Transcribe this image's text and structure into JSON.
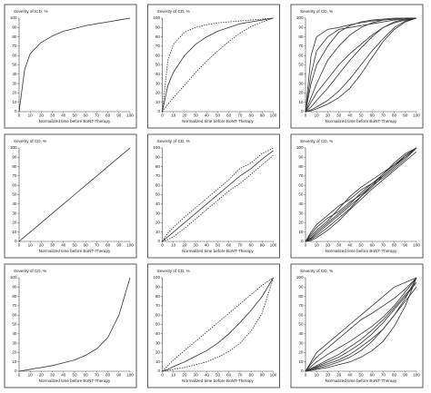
{
  "chart_data": [
    {
      "type": "line",
      "y_label": "Severity of ICD, %",
      "x_label": "Normalized time before BoNT-Therapy",
      "x": [
        0,
        5,
        10,
        20,
        30,
        40,
        50,
        60,
        70,
        80,
        90,
        100
      ],
      "xlim": [
        0,
        100
      ],
      "ylim": [
        0,
        100
      ],
      "xticks": [
        0,
        10,
        20,
        30,
        40,
        50,
        60,
        70,
        80,
        90,
        100
      ],
      "yticks": [
        0,
        10,
        20,
        30,
        40,
        50,
        60,
        70,
        80,
        90,
        100
      ],
      "series": [
        {
          "color": "#333333",
          "dashed": false,
          "values": [
            0,
            45,
            62,
            74,
            81,
            86,
            89,
            92,
            94,
            96,
            98,
            100
          ]
        }
      ]
    },
    {
      "type": "line",
      "y_label": "Severity of CD, %",
      "x_label": "Normalized time before BoNT-Therapy",
      "x": [
        0,
        5,
        10,
        20,
        30,
        40,
        50,
        60,
        70,
        80,
        90,
        100
      ],
      "xlim": [
        0,
        100
      ],
      "ylim": [
        0,
        100
      ],
      "xticks": [
        0,
        10,
        20,
        30,
        40,
        50,
        60,
        70,
        80,
        90,
        100
      ],
      "yticks": [
        0,
        10,
        20,
        30,
        40,
        50,
        60,
        70,
        80,
        90,
        100
      ],
      "series": [
        {
          "color": "#333333",
          "dashed": false,
          "values": [
            0,
            28,
            42,
            60,
            72,
            80,
            86,
            90,
            94,
            96,
            98,
            100
          ]
        },
        {
          "color": "#333333",
          "dashed": true,
          "values": [
            0,
            55,
            72,
            85,
            90,
            93,
            95,
            96,
            97,
            98,
            99,
            100
          ]
        },
        {
          "color": "#333333",
          "dashed": true,
          "values": [
            0,
            8,
            15,
            28,
            42,
            54,
            65,
            75,
            84,
            91,
            96,
            100
          ]
        }
      ]
    },
    {
      "type": "line",
      "y_label": "Severity of CD, %",
      "x_label": "Normalized time before BoNT-Therapy",
      "x": [
        0,
        5,
        10,
        20,
        30,
        40,
        50,
        60,
        70,
        80,
        90,
        100
      ],
      "xlim": [
        0,
        100
      ],
      "ylim": [
        0,
        100
      ],
      "xticks": [
        0,
        10,
        20,
        30,
        40,
        50,
        60,
        70,
        80,
        90,
        100
      ],
      "yticks": [
        0,
        10,
        20,
        30,
        40,
        50,
        60,
        70,
        80,
        90,
        100
      ],
      "series": [
        {
          "color": "#333333",
          "dashed": false,
          "values": [
            0,
            30,
            50,
            70,
            85,
            92,
            96,
            98,
            99,
            100,
            100,
            100
          ]
        },
        {
          "color": "#333333",
          "dashed": false,
          "values": [
            0,
            15,
            30,
            55,
            70,
            82,
            90,
            95,
            98,
            99,
            100,
            100
          ]
        },
        {
          "color": "#333333",
          "dashed": false,
          "values": [
            0,
            5,
            12,
            25,
            40,
            55,
            68,
            80,
            90,
            96,
            99,
            100
          ]
        },
        {
          "color": "#333333",
          "dashed": false,
          "values": [
            0,
            2,
            5,
            12,
            22,
            35,
            50,
            65,
            78,
            90,
            97,
            100
          ]
        },
        {
          "color": "#333333",
          "dashed": false,
          "values": [
            0,
            60,
            80,
            88,
            90,
            93,
            95,
            97,
            98,
            99,
            100,
            100
          ]
        },
        {
          "color": "#333333",
          "dashed": false,
          "values": [
            0,
            10,
            20,
            35,
            50,
            62,
            72,
            82,
            90,
            95,
            98,
            100
          ]
        },
        {
          "color": "#333333",
          "dashed": false,
          "values": [
            0,
            40,
            65,
            80,
            88,
            90,
            92,
            94,
            96,
            98,
            99,
            100
          ]
        },
        {
          "color": "#333333",
          "dashed": false,
          "values": [
            0,
            1,
            3,
            8,
            15,
            25,
            40,
            58,
            75,
            88,
            96,
            100
          ]
        }
      ]
    },
    {
      "type": "line",
      "y_label": "Severity of CD, %",
      "x_label": "Normalized time before BoNT-Therapy",
      "x": [
        0,
        5,
        10,
        20,
        30,
        40,
        50,
        60,
        70,
        80,
        90,
        100
      ],
      "xlim": [
        0,
        100
      ],
      "ylim": [
        0,
        100
      ],
      "xticks": [
        0,
        10,
        20,
        30,
        40,
        50,
        60,
        70,
        80,
        90,
        100
      ],
      "yticks": [
        0,
        10,
        20,
        30,
        40,
        50,
        60,
        70,
        80,
        90,
        100
      ],
      "series": [
        {
          "color": "#333333",
          "dashed": false,
          "values": [
            0,
            5,
            10,
            20,
            30,
            40,
            50,
            60,
            70,
            80,
            90,
            100
          ]
        }
      ]
    },
    {
      "type": "line",
      "y_label": "Severity of CD, %",
      "x_label": "Normalized time before BoNT-Therapy",
      "x": [
        0,
        5,
        10,
        20,
        30,
        40,
        50,
        60,
        70,
        80,
        90,
        100
      ],
      "xlim": [
        0,
        100
      ],
      "ylim": [
        0,
        100
      ],
      "xticks": [
        0,
        10,
        20,
        30,
        40,
        50,
        60,
        70,
        80,
        90,
        100
      ],
      "yticks": [
        0,
        10,
        20,
        30,
        40,
        50,
        60,
        70,
        80,
        90,
        100
      ],
      "series": [
        {
          "color": "#333333",
          "dashed": false,
          "values": [
            0,
            5,
            10,
            20,
            30,
            40,
            50,
            60,
            70,
            78,
            88,
            97
          ]
        },
        {
          "color": "#333333",
          "dashed": true,
          "values": [
            0,
            9,
            15,
            26,
            36,
            46,
            56,
            66,
            78,
            84,
            94,
            100
          ]
        },
        {
          "color": "#333333",
          "dashed": true,
          "values": [
            0,
            2,
            5,
            14,
            24,
            34,
            44,
            54,
            62,
            72,
            82,
            92
          ]
        }
      ]
    },
    {
      "type": "line",
      "y_label": "Severity of CD, %",
      "x_label": "Normalized time before BoNT-Therapy",
      "x": [
        0,
        5,
        10,
        20,
        30,
        40,
        50,
        60,
        70,
        80,
        90,
        100
      ],
      "xlim": [
        0,
        100
      ],
      "ylim": [
        0,
        100
      ],
      "xticks": [
        0,
        10,
        20,
        30,
        40,
        50,
        60,
        70,
        80,
        90,
        100
      ],
      "yticks": [
        0,
        10,
        20,
        30,
        40,
        50,
        60,
        70,
        80,
        90,
        100
      ],
      "series": [
        {
          "color": "#333333",
          "dashed": false,
          "values": [
            0,
            3,
            8,
            18,
            28,
            38,
            48,
            58,
            70,
            80,
            90,
            100
          ]
        },
        {
          "color": "#333333",
          "dashed": false,
          "values": [
            0,
            8,
            15,
            25,
            32,
            42,
            50,
            60,
            68,
            78,
            88,
            100
          ]
        },
        {
          "color": "#333333",
          "dashed": false,
          "values": [
            0,
            2,
            6,
            15,
            25,
            35,
            48,
            60,
            72,
            82,
            92,
            100
          ]
        },
        {
          "color": "#333333",
          "dashed": false,
          "values": [
            0,
            10,
            18,
            28,
            38,
            45,
            55,
            62,
            70,
            80,
            92,
            100
          ]
        },
        {
          "color": "#333333",
          "dashed": false,
          "values": [
            0,
            4,
            10,
            20,
            30,
            40,
            52,
            62,
            72,
            84,
            94,
            100
          ]
        },
        {
          "color": "#333333",
          "dashed": false,
          "values": [
            0,
            1,
            4,
            12,
            22,
            34,
            45,
            56,
            66,
            76,
            86,
            96
          ]
        },
        {
          "color": "#333333",
          "dashed": false,
          "values": [
            0,
            6,
            12,
            22,
            35,
            48,
            58,
            66,
            74,
            82,
            90,
            100
          ]
        }
      ]
    },
    {
      "type": "line",
      "y_label": "Severity of CD, %",
      "x_label": "Normalized time before BoNT-Therapy",
      "x": [
        0,
        5,
        10,
        20,
        30,
        40,
        50,
        60,
        70,
        80,
        90,
        100
      ],
      "xlim": [
        0,
        100
      ],
      "ylim": [
        0,
        100
      ],
      "xticks": [
        0,
        10,
        20,
        30,
        40,
        50,
        60,
        70,
        80,
        90,
        100
      ],
      "yticks": [
        0,
        10,
        20,
        30,
        40,
        50,
        60,
        70,
        80,
        90,
        100
      ],
      "series": [
        {
          "color": "#333333",
          "dashed": false,
          "values": [
            0,
            1,
            2,
            4,
            6,
            9,
            12,
            17,
            24,
            36,
            60,
            100
          ]
        }
      ]
    },
    {
      "type": "line",
      "y_label": "Severity of CD, %",
      "x_label": "Normalized time before BoNT-Therapy",
      "x": [
        0,
        5,
        10,
        20,
        30,
        40,
        50,
        60,
        70,
        80,
        90,
        100
      ],
      "xlim": [
        0,
        100
      ],
      "ylim": [
        0,
        100
      ],
      "xticks": [
        0,
        10,
        20,
        30,
        40,
        50,
        60,
        70,
        80,
        90,
        100
      ],
      "yticks": [
        0,
        10,
        20,
        30,
        40,
        50,
        60,
        70,
        80,
        90,
        100
      ],
      "series": [
        {
          "color": "#333333",
          "dashed": false,
          "values": [
            0,
            2,
            5,
            10,
            16,
            22,
            30,
            40,
            52,
            65,
            80,
            100
          ]
        },
        {
          "color": "#333333",
          "dashed": true,
          "values": [
            0,
            6,
            12,
            22,
            32,
            42,
            52,
            62,
            72,
            82,
            92,
            100
          ]
        },
        {
          "color": "#333333",
          "dashed": true,
          "values": [
            0,
            1,
            2,
            4,
            7,
            10,
            15,
            21,
            30,
            43,
            62,
            100
          ]
        }
      ]
    },
    {
      "type": "line",
      "y_label": "Severity of CD, %",
      "x_label": "Normalized time before BoNT-Therapy",
      "x": [
        0,
        5,
        10,
        20,
        30,
        40,
        50,
        60,
        70,
        80,
        90,
        100
      ],
      "xlim": [
        0,
        100
      ],
      "ylim": [
        0,
        100
      ],
      "xticks": [
        0,
        10,
        20,
        30,
        40,
        50,
        60,
        70,
        80,
        90,
        100
      ],
      "yticks": [
        0,
        10,
        20,
        30,
        40,
        50,
        60,
        70,
        80,
        90,
        100
      ],
      "series": [
        {
          "color": "#333333",
          "dashed": false,
          "values": [
            0,
            2,
            5,
            10,
            15,
            22,
            30,
            40,
            52,
            66,
            80,
            95
          ]
        },
        {
          "color": "#333333",
          "dashed": false,
          "values": [
            0,
            1,
            3,
            6,
            10,
            15,
            22,
            32,
            45,
            60,
            78,
            100
          ]
        },
        {
          "color": "#333333",
          "dashed": false,
          "values": [
            0,
            5,
            10,
            18,
            25,
            32,
            40,
            48,
            58,
            70,
            85,
            100
          ]
        },
        {
          "color": "#333333",
          "dashed": false,
          "values": [
            0,
            1,
            2,
            4,
            7,
            10,
            15,
            22,
            32,
            48,
            70,
            100
          ]
        },
        {
          "color": "#333333",
          "dashed": false,
          "values": [
            0,
            8,
            15,
            25,
            35,
            45,
            55,
            62,
            70,
            78,
            88,
            100
          ]
        },
        {
          "color": "#333333",
          "dashed": false,
          "values": [
            0,
            3,
            6,
            12,
            18,
            26,
            34,
            44,
            55,
            68,
            82,
            95
          ]
        },
        {
          "color": "#333333",
          "dashed": false,
          "values": [
            0,
            2,
            4,
            8,
            12,
            18,
            26,
            35,
            45,
            60,
            75,
            90
          ]
        },
        {
          "color": "#333333",
          "dashed": false,
          "values": [
            0,
            10,
            20,
            30,
            40,
            50,
            60,
            70,
            80,
            90,
            95,
            100
          ]
        }
      ]
    }
  ]
}
